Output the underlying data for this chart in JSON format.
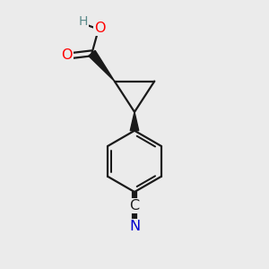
{
  "bg_color": "#ebebeb",
  "line_color": "#1a1a1a",
  "bond_width": 1.6,
  "atom_colors": {
    "O": "#ff0000",
    "N": "#0000cc",
    "C": "#1a1a1a",
    "H": "#5a8a8a"
  },
  "font_size_atoms": 11.5,
  "font_size_h": 10
}
